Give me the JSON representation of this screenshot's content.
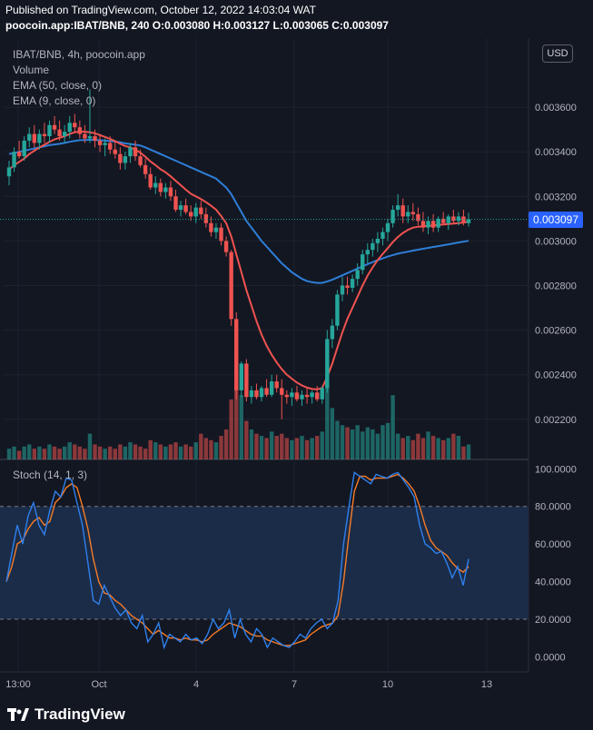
{
  "header": {
    "published": "Published on TradingView.com, October 12, 2022 14:03:04 WAT",
    "symbol_line": "poocoin.app:IBAT/BNB, 240 O:0.003080 H:0.003127 L:0.003065 C:0.003097"
  },
  "legend": {
    "title": "IBAT/BNB, 4h, poocoin.app",
    "volume": "Volume",
    "ema50": "EMA (50, close, 0)",
    "ema9": "EMA (9, close, 0)",
    "stoch": "Stoch (14, 1, 3)"
  },
  "currency_button": "USD",
  "last_price": "0.003097",
  "watermark": "TradingView",
  "colors": {
    "background": "#131722",
    "up": "#26a69a",
    "down": "#ef5350",
    "ema50": "#2f7ed8",
    "ema9": "#ef5350",
    "stoch_k": "#2f80ed",
    "stoch_d": "#f57c28",
    "stoch_band": "#1b2c48",
    "last_price_line": "#26a69a",
    "price_tag": "#2962ff"
  },
  "chart_data": [
    {
      "type": "candlestick",
      "title": "IBAT/BNB, 4h, poocoin.app",
      "y_ticks": [
        "0.003600",
        "0.003400",
        "0.003200",
        "0.003000",
        "0.002800",
        "0.002600",
        "0.002400",
        "0.002200"
      ],
      "x_ticks": [
        "13:00",
        "Oct",
        "4",
        "7",
        "10",
        "13"
      ],
      "ylim": [
        0.00202,
        0.00391
      ],
      "last_close": 0.003097,
      "candles": [
        [
          0.00329,
          0.00336,
          0.00325,
          0.00333
        ],
        [
          0.00333,
          0.00342,
          0.00331,
          0.0034
        ],
        [
          0.0034,
          0.00345,
          0.00337,
          0.00338
        ],
        [
          0.00338,
          0.00347,
          0.00336,
          0.00345
        ],
        [
          0.00345,
          0.00351,
          0.00342,
          0.00348
        ],
        [
          0.00348,
          0.00352,
          0.00342,
          0.00344
        ],
        [
          0.00344,
          0.0035,
          0.00341,
          0.00348
        ],
        [
          0.00348,
          0.00353,
          0.00344,
          0.00347
        ],
        [
          0.00347,
          0.00354,
          0.00344,
          0.00352
        ],
        [
          0.00352,
          0.00356,
          0.00348,
          0.0035
        ],
        [
          0.0035,
          0.00354,
          0.00345,
          0.00347
        ],
        [
          0.00347,
          0.00352,
          0.00344,
          0.00349
        ],
        [
          0.00349,
          0.00356,
          0.00346,
          0.00353
        ],
        [
          0.00353,
          0.00357,
          0.00349,
          0.00351
        ],
        [
          0.00351,
          0.00354,
          0.00346,
          0.00348
        ],
        [
          0.00348,
          0.00352,
          0.00344,
          0.00346
        ],
        [
          0.00346,
          0.00368,
          0.00344,
          0.00347
        ],
        [
          0.00347,
          0.0035,
          0.00342,
          0.00345
        ],
        [
          0.00345,
          0.00348,
          0.0034,
          0.00343
        ],
        [
          0.00343,
          0.00346,
          0.00338,
          0.00344
        ],
        [
          0.00344,
          0.00347,
          0.00339,
          0.00341
        ],
        [
          0.00341,
          0.00345,
          0.00337,
          0.00339
        ],
        [
          0.00339,
          0.00342,
          0.00332,
          0.00335
        ],
        [
          0.00335,
          0.0034,
          0.00332,
          0.00338
        ],
        [
          0.00338,
          0.00344,
          0.00335,
          0.00342
        ],
        [
          0.00342,
          0.00345,
          0.00336,
          0.00338
        ],
        [
          0.00338,
          0.00341,
          0.00333,
          0.00334
        ],
        [
          0.00334,
          0.00337,
          0.00328,
          0.0033
        ],
        [
          0.0033,
          0.00333,
          0.00323,
          0.00324
        ],
        [
          0.00324,
          0.00329,
          0.00321,
          0.00326
        ],
        [
          0.00326,
          0.00328,
          0.0032,
          0.00322
        ],
        [
          0.00322,
          0.00326,
          0.00319,
          0.00324
        ],
        [
          0.00324,
          0.00327,
          0.00318,
          0.0032
        ],
        [
          0.0032,
          0.00323,
          0.00313,
          0.00314
        ],
        [
          0.00314,
          0.00318,
          0.00311,
          0.00316
        ],
        [
          0.00316,
          0.00319,
          0.00312,
          0.00313
        ],
        [
          0.00313,
          0.00316,
          0.00309,
          0.00311
        ],
        [
          0.00311,
          0.00317,
          0.00308,
          0.00315
        ],
        [
          0.00315,
          0.00318,
          0.0031,
          0.00312
        ],
        [
          0.00312,
          0.00315,
          0.00306,
          0.00308
        ],
        [
          0.00308,
          0.00311,
          0.00302,
          0.00304
        ],
        [
          0.00304,
          0.00308,
          0.00301,
          0.00306
        ],
        [
          0.00306,
          0.00308,
          0.00298,
          0.003
        ],
        [
          0.003,
          0.00302,
          0.00293,
          0.00295
        ],
        [
          0.00295,
          0.00296,
          0.00262,
          0.00265
        ],
        [
          0.00265,
          0.00268,
          0.00229,
          0.00233
        ],
        [
          0.00233,
          0.00246,
          0.0023,
          0.00245
        ],
        [
          0.00245,
          0.00247,
          0.00228,
          0.0023
        ],
        [
          0.0023,
          0.00235,
          0.00227,
          0.00233
        ],
        [
          0.00233,
          0.00236,
          0.00229,
          0.0023
        ],
        [
          0.0023,
          0.00235,
          0.00228,
          0.00234
        ],
        [
          0.00234,
          0.00238,
          0.0023,
          0.00231
        ],
        [
          0.00231,
          0.0024,
          0.0023,
          0.00237
        ],
        [
          0.00237,
          0.0024,
          0.00232,
          0.00234
        ],
        [
          0.00234,
          0.00238,
          0.0022,
          0.00231
        ],
        [
          0.00231,
          0.00233,
          0.00227,
          0.0023
        ],
        [
          0.0023,
          0.00234,
          0.00226,
          0.00232
        ],
        [
          0.00232,
          0.00235,
          0.00228,
          0.00229
        ],
        [
          0.00229,
          0.00233,
          0.00226,
          0.00231
        ],
        [
          0.00231,
          0.00234,
          0.00227,
          0.0023
        ],
        [
          0.0023,
          0.00233,
          0.00227,
          0.00232
        ],
        [
          0.00232,
          0.00235,
          0.00228,
          0.00229
        ],
        [
          0.00229,
          0.00235,
          0.00227,
          0.00234
        ],
        [
          0.00234,
          0.0026,
          0.00232,
          0.00256
        ],
        [
          0.00256,
          0.00265,
          0.00252,
          0.00262
        ],
        [
          0.00262,
          0.00278,
          0.0026,
          0.00276
        ],
        [
          0.00276,
          0.00284,
          0.00273,
          0.0028
        ],
        [
          0.0028,
          0.00284,
          0.00276,
          0.00279
        ],
        [
          0.00279,
          0.00285,
          0.00277,
          0.00283
        ],
        [
          0.00283,
          0.0029,
          0.0028,
          0.00287
        ],
        [
          0.00287,
          0.00296,
          0.00285,
          0.00294
        ],
        [
          0.00294,
          0.00299,
          0.0029,
          0.00296
        ],
        [
          0.00296,
          0.00301,
          0.00293,
          0.00299
        ],
        [
          0.00299,
          0.00304,
          0.00295,
          0.00301
        ],
        [
          0.00301,
          0.00306,
          0.00298,
          0.00304
        ],
        [
          0.00304,
          0.0031,
          0.003,
          0.00308
        ],
        [
          0.00308,
          0.00316,
          0.00306,
          0.00314
        ],
        [
          0.00314,
          0.00321,
          0.00311,
          0.00316
        ],
        [
          0.00316,
          0.00319,
          0.00308,
          0.00311
        ],
        [
          0.00311,
          0.00316,
          0.00308,
          0.00313
        ],
        [
          0.00313,
          0.00317,
          0.00309,
          0.00312
        ],
        [
          0.00312,
          0.00315,
          0.00307,
          0.00309
        ],
        [
          0.00309,
          0.00313,
          0.00304,
          0.00306
        ],
        [
          0.00306,
          0.00311,
          0.00303,
          0.00309
        ],
        [
          0.00309,
          0.00312,
          0.00304,
          0.00306
        ],
        [
          0.00306,
          0.00311,
          0.00304,
          0.0031
        ],
        [
          0.0031,
          0.00313,
          0.00307,
          0.00308
        ],
        [
          0.00308,
          0.00312,
          0.00305,
          0.00311
        ],
        [
          0.00311,
          0.00314,
          0.00308,
          0.00309
        ],
        [
          0.00309,
          0.00313,
          0.00307,
          0.00311
        ],
        [
          0.00311,
          0.00314,
          0.00307,
          0.00308
        ],
        [
          0.00308,
          0.003127,
          0.003065,
          0.003097
        ]
      ],
      "volume": [
        5,
        6,
        4,
        6,
        7,
        5,
        6,
        5,
        7,
        6,
        5,
        6,
        8,
        7,
        6,
        5,
        12,
        7,
        6,
        5,
        6,
        5,
        7,
        6,
        8,
        7,
        6,
        5,
        9,
        8,
        7,
        6,
        7,
        8,
        6,
        7,
        6,
        8,
        12,
        10,
        9,
        8,
        11,
        14,
        28,
        50,
        30,
        18,
        14,
        12,
        11,
        10,
        13,
        11,
        12,
        10,
        9,
        10,
        11,
        9,
        10,
        11,
        13,
        40,
        24,
        18,
        16,
        15,
        14,
        16,
        13,
        15,
        14,
        12,
        16,
        17,
        30,
        12,
        10,
        11,
        9,
        12,
        10,
        13,
        11,
        10,
        9,
        10,
        12,
        11,
        6,
        7
      ],
      "ema50": [
        0.00339,
        0.003395,
        0.0034,
        0.003405,
        0.00341,
        0.003415,
        0.00342,
        0.003425,
        0.00343,
        0.003433,
        0.003436,
        0.00344,
        0.003445,
        0.003449,
        0.003452,
        0.003453,
        0.003454,
        0.003453,
        0.003452,
        0.00345,
        0.003448,
        0.003446,
        0.003443,
        0.003438,
        0.003435,
        0.003432,
        0.003428,
        0.00342,
        0.00341,
        0.0034,
        0.00339,
        0.00338,
        0.00337,
        0.00336,
        0.00335,
        0.00334,
        0.00333,
        0.00332,
        0.00331,
        0.0033,
        0.00329,
        0.00328,
        0.00326,
        0.00324,
        0.00321,
        0.00317,
        0.00313,
        0.00309,
        0.00306,
        0.00303,
        0.003,
        0.002975,
        0.00295,
        0.002925,
        0.0029,
        0.00288,
        0.00286,
        0.002845,
        0.00283,
        0.00282,
        0.002815,
        0.002812,
        0.002812,
        0.002818,
        0.002826,
        0.002836,
        0.002846,
        0.002856,
        0.002866,
        0.002876,
        0.002886,
        0.002896,
        0.002905,
        0.002914,
        0.002922,
        0.00293,
        0.002937,
        0.002943,
        0.002948,
        0.002952,
        0.002957,
        0.002961,
        0.002965,
        0.002969,
        0.002973,
        0.002977,
        0.002981,
        0.002985,
        0.002989,
        0.002993,
        0.002997,
        0.003001
      ],
      "ema9": [
        0.00332,
        0.00334,
        0.003355,
        0.00337,
        0.00339,
        0.003405,
        0.00342,
        0.003432,
        0.003445,
        0.003456,
        0.003463,
        0.00347,
        0.00348,
        0.003488,
        0.003491,
        0.00349,
        0.003488,
        0.003483,
        0.003475,
        0.003467,
        0.003458,
        0.003448,
        0.003436,
        0.003426,
        0.00342,
        0.00341,
        0.003396,
        0.003378,
        0.003357,
        0.00334,
        0.003322,
        0.003308,
        0.00329,
        0.00327,
        0.00325,
        0.00323,
        0.003212,
        0.0032,
        0.003188,
        0.003174,
        0.003158,
        0.00314,
        0.003112,
        0.00308,
        0.00302,
        0.00294,
        0.00286,
        0.00278,
        0.00271,
        0.00264,
        0.00258,
        0.00253,
        0.00249,
        0.002455,
        0.002425,
        0.0024,
        0.002382,
        0.002365,
        0.002352,
        0.002342,
        0.002336,
        0.002334,
        0.00234,
        0.00239,
        0.00245,
        0.00252,
        0.00259,
        0.00265,
        0.0027,
        0.00275,
        0.0028,
        0.002845,
        0.002882,
        0.002915,
        0.002942,
        0.002968,
        0.002995,
        0.003018,
        0.003036,
        0.00305,
        0.00306,
        0.003064,
        0.003066,
        0.003068,
        0.00307,
        0.003072,
        0.003074,
        0.003076,
        0.003078,
        0.00308,
        0.003083,
        0.003086
      ]
    },
    {
      "type": "line",
      "title": "Stoch (14, 1, 3)",
      "y_ticks": [
        "100.0000",
        "80.0000",
        "60.0000",
        "40.0000",
        "20.0000",
        "0.0000"
      ],
      "ylim": [
        -8,
        104
      ],
      "band": [
        20,
        80
      ],
      "series": [
        {
          "values": [
            40,
            55,
            70,
            60,
            75,
            82,
            70,
            65,
            78,
            88,
            85,
            95,
            94,
            82,
            70,
            50,
            30,
            28,
            38,
            32,
            26,
            22,
            25,
            18,
            15,
            22,
            8,
            12,
            18,
            5,
            12,
            10,
            8,
            12,
            9,
            10,
            7,
            12,
            20,
            15,
            18,
            25,
            10,
            20,
            12,
            8,
            15,
            12,
            5,
            10,
            8,
            6,
            5,
            8,
            12,
            10,
            15,
            18,
            20,
            15,
            18,
            30,
            60,
            80,
            98,
            96,
            94,
            92,
            97,
            96,
            95,
            97,
            98,
            94,
            90,
            85,
            70,
            60,
            58,
            55,
            56,
            50,
            42,
            48,
            38,
            52
          ]
        },
        {
          "values": [
            40,
            48,
            60,
            62,
            68,
            72,
            74,
            70,
            72,
            82,
            85,
            90,
            92,
            90,
            80,
            68,
            52,
            40,
            34,
            33,
            30,
            28,
            25,
            22,
            20,
            18,
            15,
            12,
            14,
            12,
            10,
            10,
            9,
            10,
            9,
            9,
            8,
            9,
            12,
            14,
            16,
            18,
            17,
            16,
            14,
            12,
            11,
            11,
            9,
            8,
            7,
            6,
            6,
            7,
            8,
            9,
            12,
            14,
            16,
            17,
            18,
            22,
            40,
            65,
            88,
            96,
            96,
            94,
            95,
            95,
            95,
            96,
            97,
            95,
            92,
            88,
            80,
            70,
            62,
            58,
            56,
            54,
            50,
            47,
            45,
            48
          ]
        }
      ]
    }
  ]
}
